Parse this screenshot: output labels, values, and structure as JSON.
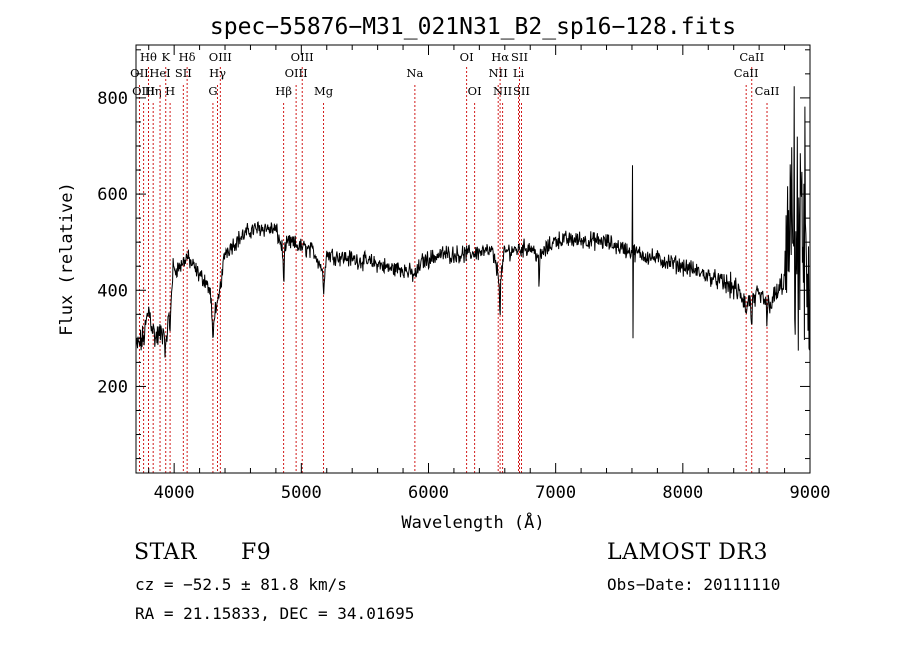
{
  "chart_data": {
    "type": "line",
    "title": "spec−55876−M31_021N31_B2_sp16−128.fits",
    "xlabel": "Wavelength (Å)",
    "ylabel": "Flux (relative)",
    "xlim": [
      3700,
      9000
    ],
    "ylim": [
      20,
      910
    ],
    "x_ticks": [
      4000,
      5000,
      6000,
      7000,
      8000,
      9000
    ],
    "y_ticks": [
      200,
      400,
      600,
      800
    ],
    "line_color": "#000000",
    "marker_color": "#cc0000",
    "spectrum_anchors": [
      [
        3700,
        280
      ],
      [
        3760,
        300
      ],
      [
        3800,
        360
      ],
      [
        3850,
        300
      ],
      [
        3900,
        310
      ],
      [
        3950,
        330
      ],
      [
        3990,
        440
      ],
      [
        4050,
        450
      ],
      [
        4100,
        470
      ],
      [
        4150,
        450
      ],
      [
        4200,
        430
      ],
      [
        4250,
        420
      ],
      [
        4300,
        380
      ],
      [
        4340,
        360
      ],
      [
        4400,
        480
      ],
      [
        4500,
        505
      ],
      [
        4600,
        525
      ],
      [
        4700,
        530
      ],
      [
        4800,
        525
      ],
      [
        4861,
        480
      ],
      [
        4900,
        500
      ],
      [
        5000,
        490
      ],
      [
        5100,
        480
      ],
      [
        5175,
        440
      ],
      [
        5200,
        475
      ],
      [
        5300,
        470
      ],
      [
        5400,
        465
      ],
      [
        5500,
        460
      ],
      [
        5600,
        455
      ],
      [
        5700,
        445
      ],
      [
        5800,
        445
      ],
      [
        5893,
        430
      ],
      [
        5950,
        460
      ],
      [
        6100,
        475
      ],
      [
        6300,
        475
      ],
      [
        6400,
        480
      ],
      [
        6500,
        480
      ],
      [
        6563,
        420
      ],
      [
        6600,
        480
      ],
      [
        6700,
        485
      ],
      [
        6800,
        490
      ],
      [
        6870,
        470
      ],
      [
        7000,
        505
      ],
      [
        7200,
        505
      ],
      [
        7400,
        500
      ],
      [
        7600,
        480
      ],
      [
        7800,
        465
      ],
      [
        8000,
        450
      ],
      [
        8200,
        430
      ],
      [
        8400,
        405
      ],
      [
        8500,
        375
      ],
      [
        8600,
        385
      ],
      [
        8700,
        375
      ],
      [
        8800,
        420
      ],
      [
        8850,
        540
      ],
      [
        8900,
        510
      ],
      [
        8950,
        470
      ],
      [
        9000,
        420
      ]
    ],
    "markers": [
      {
        "label": "Hθ",
        "wl": 3798,
        "row": 0
      },
      {
        "label": "OII",
        "wl": 3727,
        "row": 1
      },
      {
        "label": "OIII",
        "wl": 3760,
        "row": 2
      },
      {
        "label": "Hη",
        "wl": 3835,
        "row": 2
      },
      {
        "label": "HeI",
        "wl": 3889,
        "row": 1
      },
      {
        "label": "K",
        "wl": 3934,
        "row": 0
      },
      {
        "label": "H",
        "wl": 3968,
        "row": 2
      },
      {
        "label": "SII",
        "wl": 4072,
        "row": 1
      },
      {
        "label": "Hδ",
        "wl": 4102,
        "row": 0
      },
      {
        "label": "OIII",
        "wl": 4363,
        "row": 0
      },
      {
        "label": "Hγ",
        "wl": 4341,
        "row": 1
      },
      {
        "label": "G",
        "wl": 4305,
        "row": 2
      },
      {
        "label": "Hβ",
        "wl": 4861,
        "row": 2
      },
      {
        "label": "OIII",
        "wl": 5007,
        "row": 0
      },
      {
        "label": "OIII",
        "wl": 4959,
        "row": 1
      },
      {
        "label": "Mg",
        "wl": 5175,
        "row": 2
      },
      {
        "label": "Na",
        "wl": 5893,
        "row": 1
      },
      {
        "label": "OI",
        "wl": 6300,
        "row": 0
      },
      {
        "label": "OI",
        "wl": 6363,
        "row": 2
      },
      {
        "label": "Hα",
        "wl": 6563,
        "row": 0
      },
      {
        "label": "NII",
        "wl": 6548,
        "row": 1
      },
      {
        "label": "NII",
        "wl": 6583,
        "row": 2
      },
      {
        "label": "SII",
        "wl": 6716,
        "row": 0
      },
      {
        "label": "Li",
        "wl": 6708,
        "row": 1
      },
      {
        "label": "SII",
        "wl": 6731,
        "row": 2
      },
      {
        "label": "CaII",
        "wl": 8542,
        "row": 0
      },
      {
        "label": "CaII",
        "wl": 8498,
        "row": 1
      },
      {
        "label": "CaII",
        "wl": 8662,
        "row": 2
      }
    ]
  },
  "info": {
    "object_class": "STAR",
    "subclass": "F9",
    "survey": "LAMOST DR3",
    "cz": "cz = −52.5 ± 81.8 km/s",
    "obs_date": "Obs−Date: 20111110",
    "coords": "RA =  21.15833, DEC =  34.01695"
  }
}
